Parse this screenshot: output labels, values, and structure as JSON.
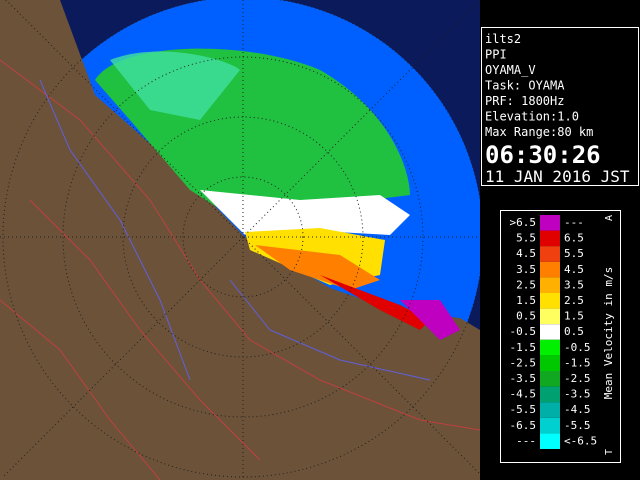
{
  "info": {
    "lines": [
      "ilts2",
      "PPI",
      "OYAMA_V",
      "Task: OYAMA",
      "PRF: 1800Hz",
      "Elevation:1.0",
      "Max Range:80 km"
    ],
    "time": "06:30:26",
    "date": "11 JAN 2016 JST"
  },
  "legend": {
    "title": "Mean Velocity in m/s",
    "top_mark": "A",
    "bottom_mark": "T",
    "rows": [
      {
        "left": ">6.5",
        "right": "---",
        "color": "#c000c0"
      },
      {
        "left": "5.5",
        "right": "6.5",
        "color": "#e00000"
      },
      {
        "left": "4.5",
        "right": "5.5",
        "color": "#f04010"
      },
      {
        "left": "3.5",
        "right": "4.5",
        "color": "#ff8000"
      },
      {
        "left": "2.5",
        "right": "3.5",
        "color": "#ffb000"
      },
      {
        "left": "1.5",
        "right": "2.5",
        "color": "#ffe000"
      },
      {
        "left": "0.5",
        "right": "1.5",
        "color": "#ffff60"
      },
      {
        "left": "-0.5",
        "right": "0.5",
        "color": "#ffffff"
      },
      {
        "left": "-1.5",
        "right": "-0.5",
        "color": "#00f000"
      },
      {
        "left": "-2.5",
        "right": "-1.5",
        "color": "#00c800"
      },
      {
        "left": "-3.5",
        "right": "-2.5",
        "color": "#10a820"
      },
      {
        "left": "-4.5",
        "right": "-3.5",
        "color": "#00a070"
      },
      {
        "left": "-5.5",
        "right": "-4.5",
        "color": "#00b0a8"
      },
      {
        "left": "-6.5",
        "right": "-5.5",
        "color": "#00d0d0"
      },
      {
        "left": "---",
        "right": "<-6.5",
        "color": "#00ffff"
      }
    ]
  }
}
